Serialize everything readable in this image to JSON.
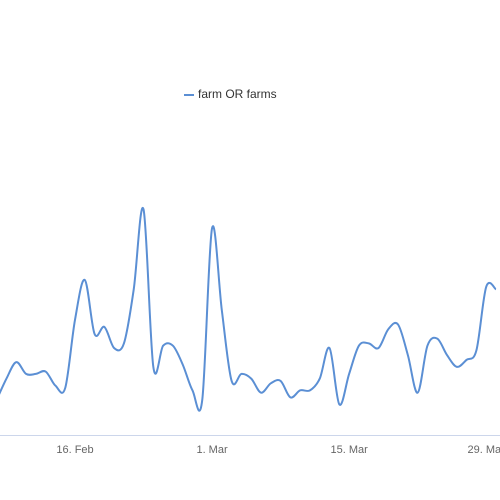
{
  "chart_data": {
    "type": "line",
    "categories": [
      null,
      null,
      null,
      null,
      null,
      null,
      null,
      null,
      "16. Feb",
      null,
      null,
      null,
      null,
      null,
      null,
      null,
      null,
      null,
      null,
      null,
      null,
      null,
      "1. Mar",
      null,
      null,
      null,
      null,
      null,
      null,
      null,
      null,
      null,
      null,
      null,
      null,
      null,
      "15. Mar",
      null,
      null,
      null,
      null,
      null,
      null,
      null,
      null,
      null,
      null,
      null,
      null,
      null,
      "29. Mar",
      null
    ],
    "series": [
      {
        "name": "farm OR farms",
        "color": "#5b8fd4",
        "values": [
          15,
          24,
          31,
          26,
          26,
          27,
          21,
          20,
          49,
          66,
          43,
          46,
          37,
          39,
          62,
          96,
          29,
          38,
          38,
          30,
          19,
          15,
          88,
          53,
          23,
          26,
          24,
          18,
          22,
          23,
          16,
          19,
          19,
          24,
          37,
          13,
          26,
          38,
          39,
          37,
          45,
          47,
          34,
          18,
          38,
          41,
          34,
          29,
          32,
          36,
          63,
          62
        ]
      }
    ],
    "ylim": [
      0,
      100
    ],
    "legend": "top"
  }
}
